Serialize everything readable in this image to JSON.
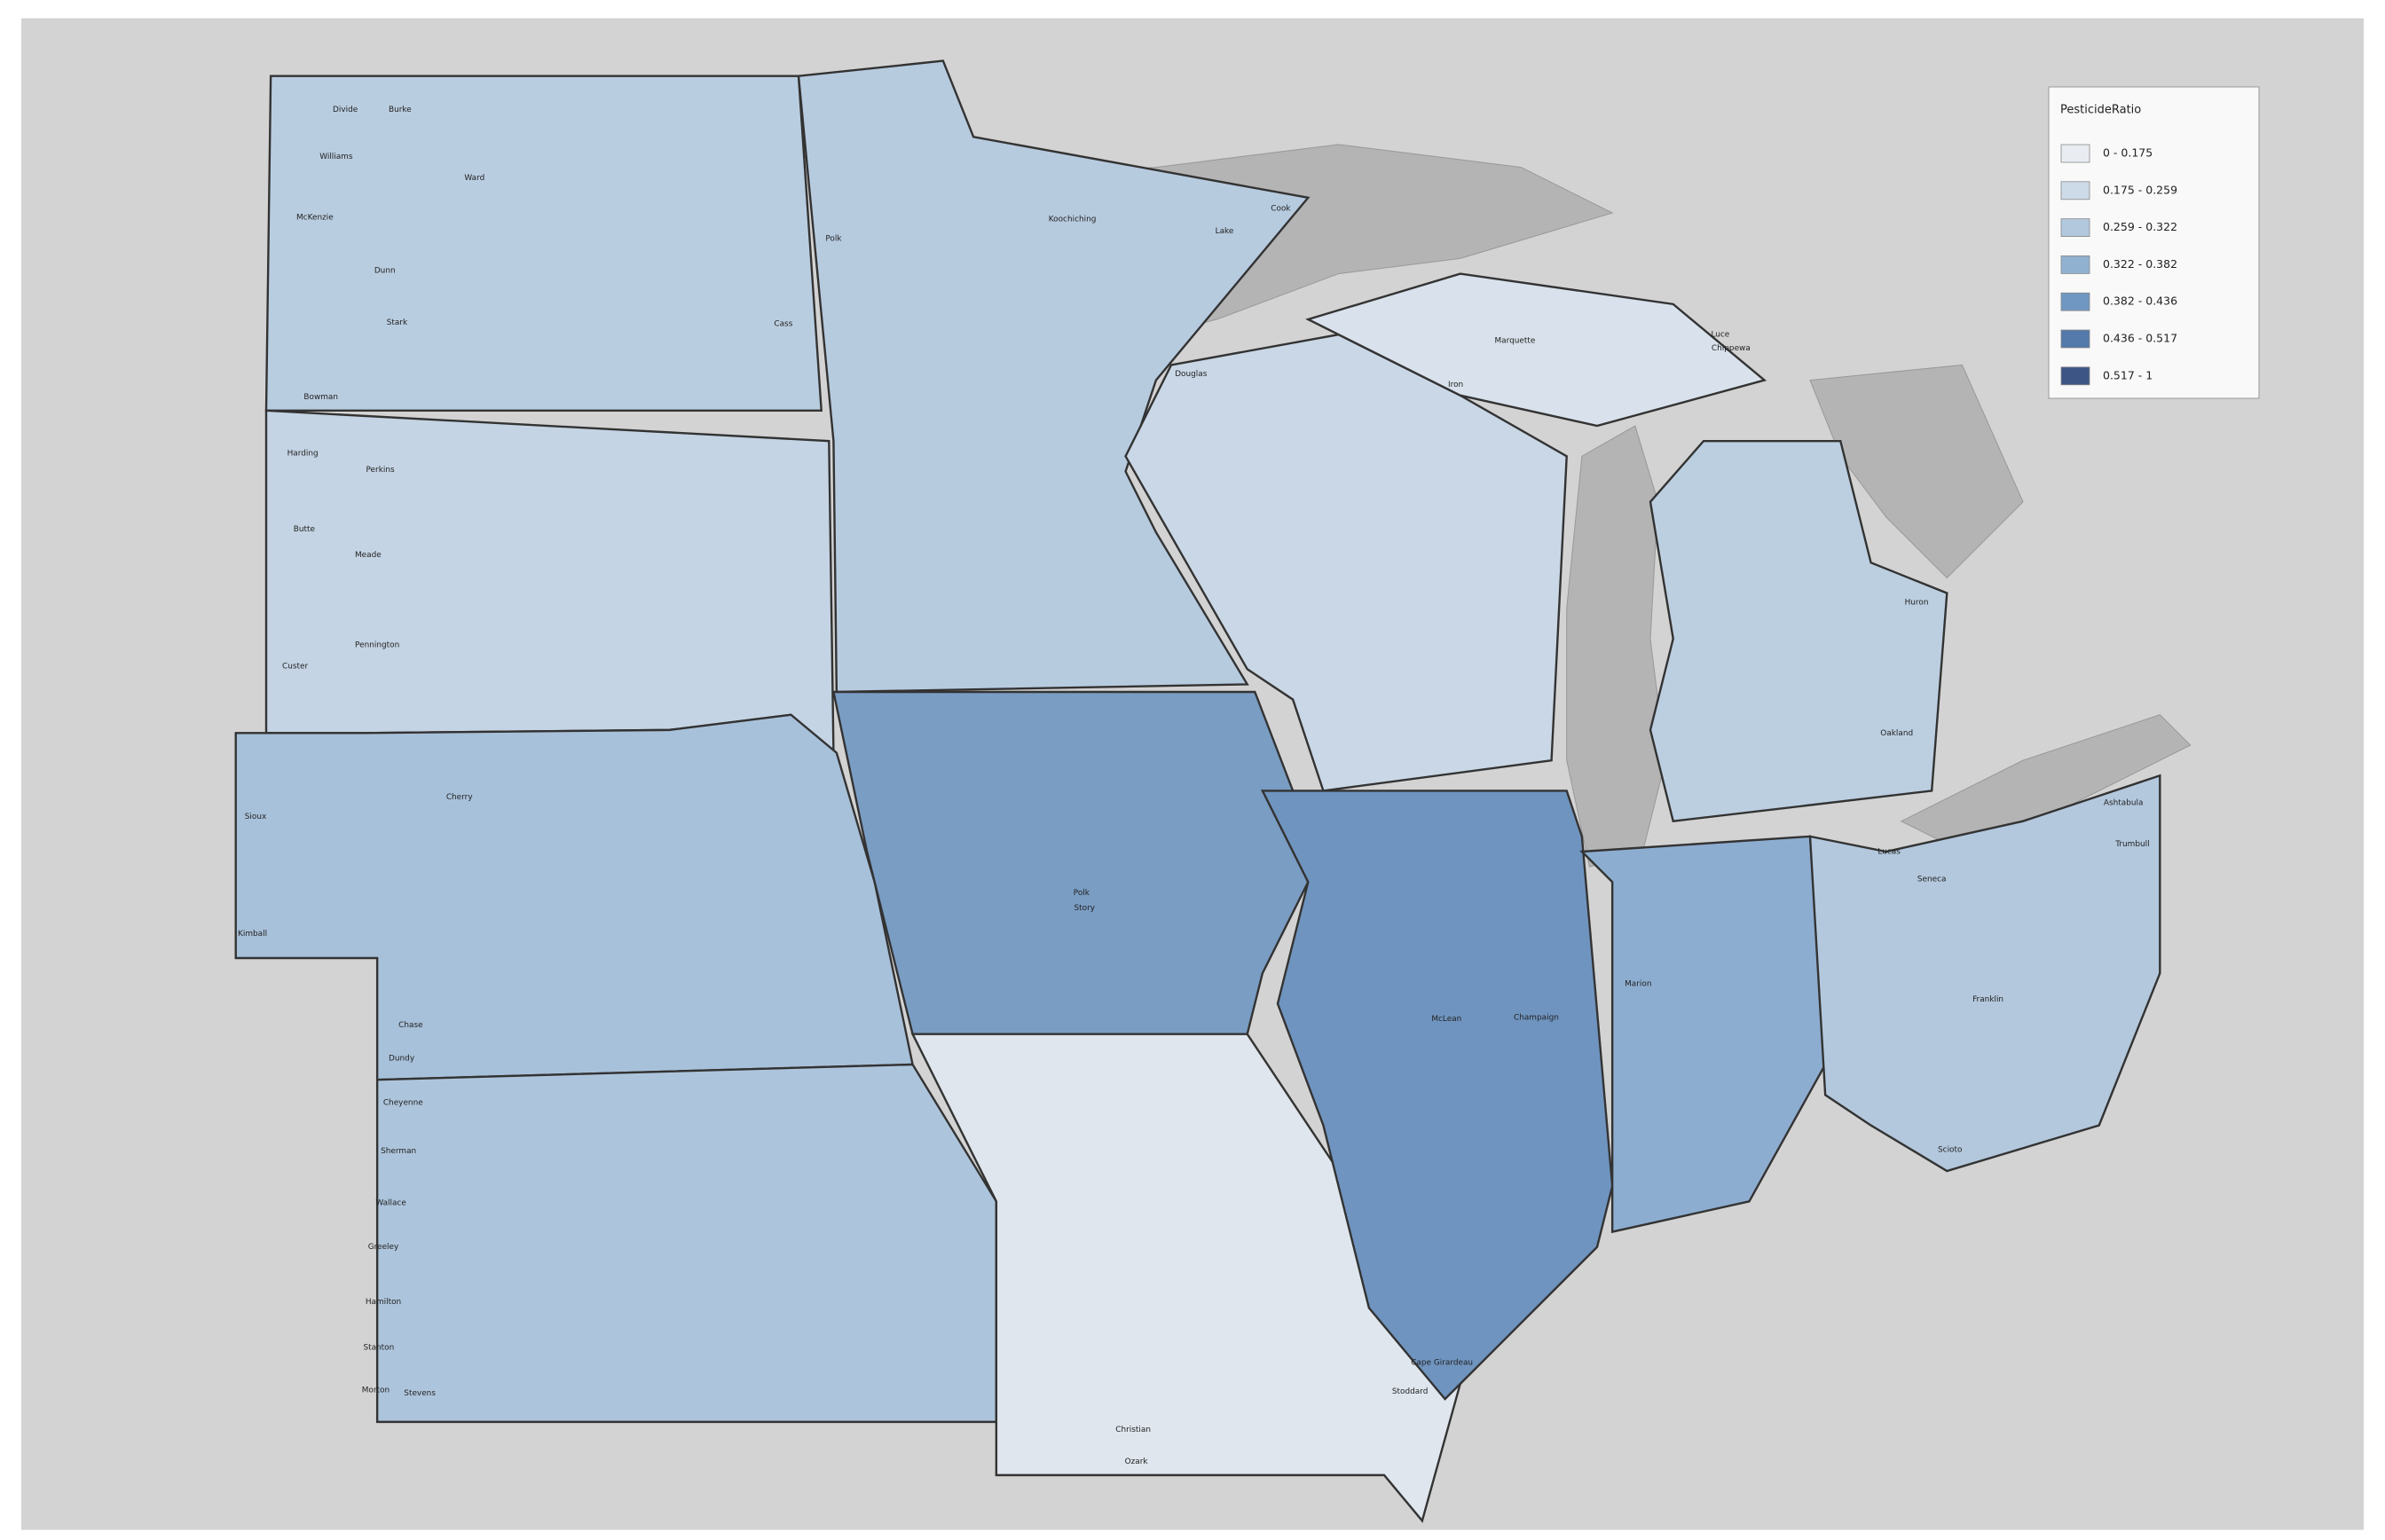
{
  "legend": {
    "title": "PesticideRatio",
    "classes": [
      {
        "label": "0 - 0.175",
        "color": "#e9edf1"
      },
      {
        "label": "0.175 - 0.259",
        "color": "#cddbe8"
      },
      {
        "label": "0.259 - 0.322",
        "color": "#b1c8dd"
      },
      {
        "label": "0.322 - 0.382",
        "color": "#91b1d0"
      },
      {
        "label": "0.382 - 0.436",
        "color": "#7097c1"
      },
      {
        "label": "0.436 - 0.517",
        "color": "#5479ab"
      },
      {
        "label": "0.517 - 1",
        "color": "#3d5585"
      }
    ]
  },
  "counties": [
    "Divide",
    "Burke",
    "Williams",
    "Ward",
    "McKenzie",
    "Dunn",
    "Stark",
    "Bowman",
    "Harding",
    "Perkins",
    "Butte",
    "Meade",
    "Pennington",
    "Custer",
    "Cherry",
    "Sioux",
    "Kimball",
    "Chase",
    "Dundy",
    "Cheyenne",
    "Sherman",
    "Wallace",
    "Greeley",
    "Hamilton",
    "Stanton",
    "Morton",
    "Stevens",
    "Cook",
    "Lake",
    "Koochiching",
    "Polk",
    "Cass",
    "Douglas",
    "Iron",
    "Chippewa",
    "Luce",
    "Marquette",
    "Huron",
    "Oakland",
    "Lucas",
    "Seneca",
    "Ashtabula",
    "Trumbull",
    "Franklin",
    "Scioto",
    "Cape Girardeau",
    "Stoddard",
    "Christian",
    "Ozark",
    "Story",
    "Polk",
    "McLean",
    "Champaign",
    "Marion"
  ]
}
